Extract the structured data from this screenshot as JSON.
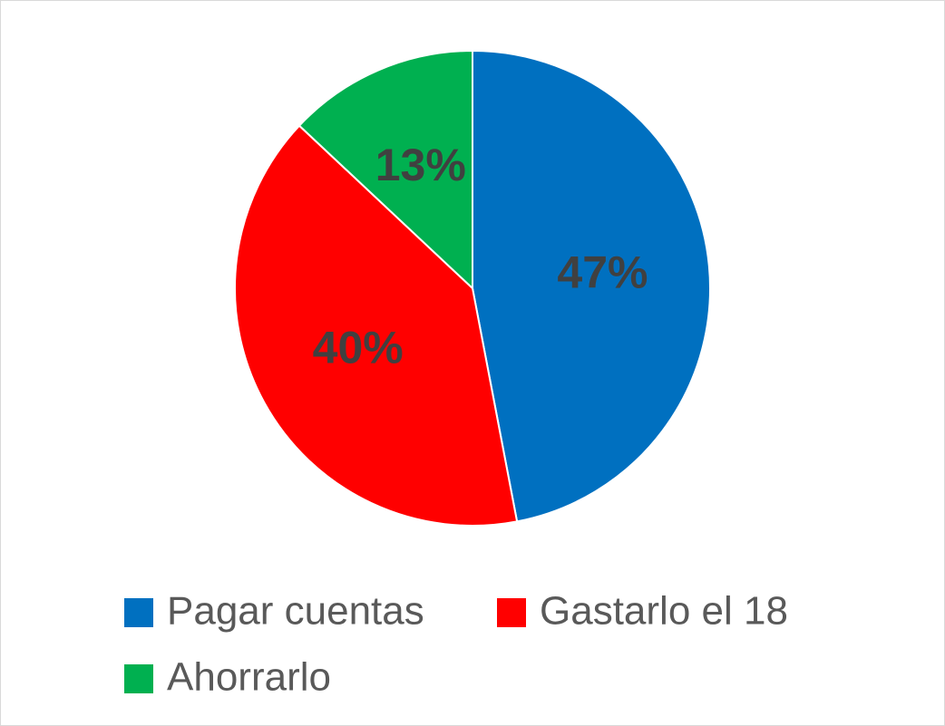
{
  "chart_data": {
    "type": "pie",
    "categories": [
      "Pagar cuentas",
      "Gastarlo el 18",
      "Ahorrarlo"
    ],
    "values": [
      47,
      40,
      13
    ],
    "value_labels": [
      "47%",
      "40%",
      "13%"
    ],
    "colors": [
      "#0070c0",
      "#ff0000",
      "#00b050"
    ],
    "legend": "bottom"
  }
}
